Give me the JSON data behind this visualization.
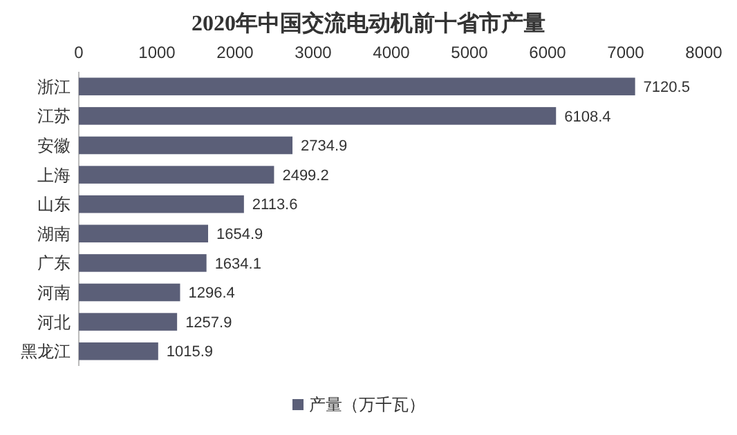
{
  "chart_data": {
    "type": "bar",
    "orientation": "horizontal",
    "title": "2020年中国交流电动机前十省市产量",
    "categories": [
      "浙江",
      "江苏",
      "安徽",
      "上海",
      "山东",
      "湖南",
      "广东",
      "河南",
      "河北",
      "黑龙江"
    ],
    "series": [
      {
        "name": "产量（万千瓦）",
        "color": "#5b5f78",
        "values": [
          7120.5,
          6108.4,
          2734.9,
          2499.2,
          2113.6,
          1654.9,
          1634.1,
          1296.4,
          1257.9,
          1015.9
        ]
      }
    ],
    "xlim": [
      0,
      8000
    ],
    "xticks": [
      0,
      1000,
      2000,
      3000,
      4000,
      5000,
      6000,
      7000,
      8000
    ],
    "data_labels": true,
    "legend": "bottom",
    "grid": false
  }
}
